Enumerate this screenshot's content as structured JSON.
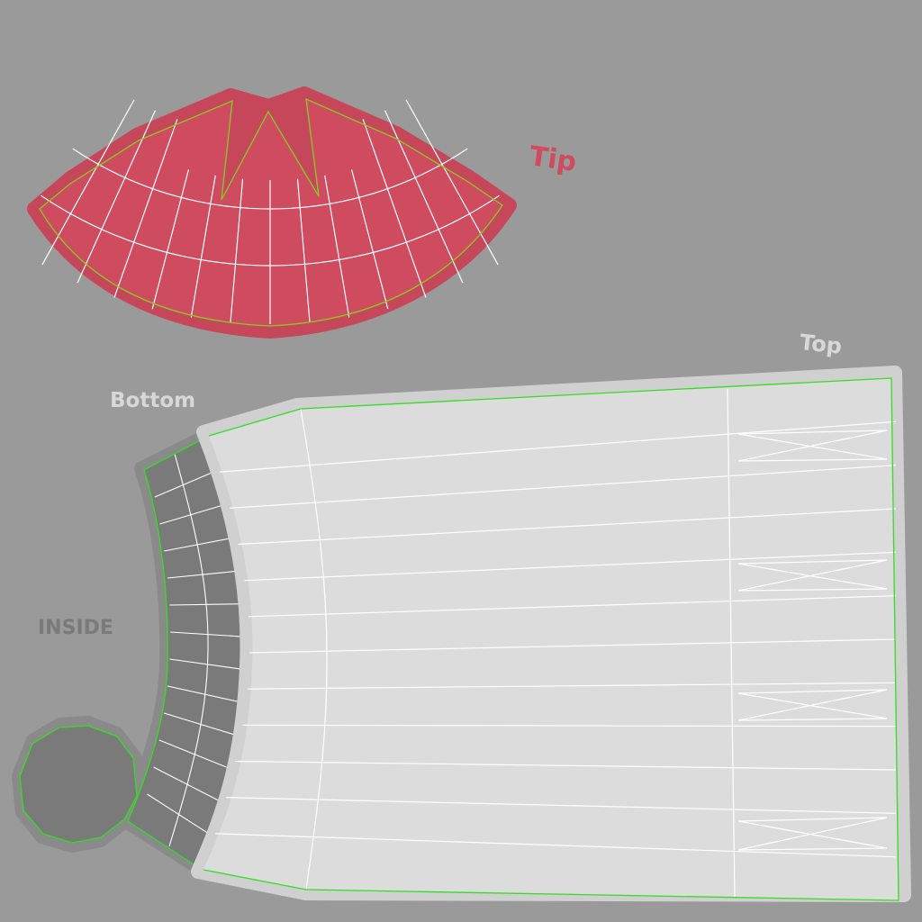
{
  "labels": {
    "tip": "Tip",
    "top": "Top",
    "bottom": "Bottom",
    "inside": "INSIDE"
  },
  "colors": {
    "background": "#9a9a9a",
    "tip_fill": "#cf4b5f",
    "tip_border": "#c7475a",
    "body_fill": "#dcdcdc",
    "body_border": "#d0d0d0",
    "inside_fill": "#7a7a7a",
    "inside_border": "#8a8a8a",
    "seam": "#33dd22",
    "wire": "#ffffff",
    "tip_label": "#cf4b5f",
    "top_label": "#d8d8d8",
    "bottom_label": "#d8d8d8",
    "inside_label": "#7a7a7a"
  },
  "icons": [
    "uv-island-tip",
    "uv-island-body",
    "uv-island-inside-strip",
    "uv-island-cap"
  ]
}
